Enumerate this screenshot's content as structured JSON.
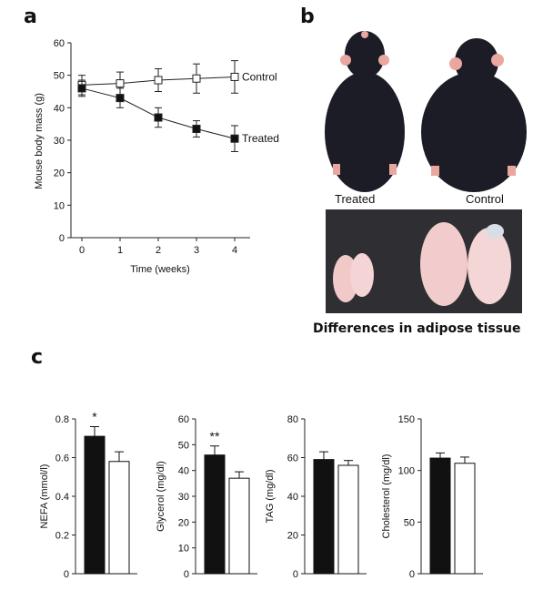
{
  "panels": {
    "a": "a",
    "b": "b",
    "c": "c"
  },
  "panel_b": {
    "label_treated": "Treated",
    "label_control": "Control",
    "caption": "Differences in adipose tissue"
  },
  "colors": {
    "treated": "#111111",
    "control": "#ffffff",
    "axis": "#222222"
  },
  "chart_data": [
    {
      "type": "line",
      "xlabel": "Time (weeks)",
      "ylabel": "Mouse body mass (g)",
      "x": [
        0,
        1,
        2,
        3,
        4
      ],
      "xticks": [
        "0",
        "1",
        "2",
        "3",
        "4"
      ],
      "ylim": [
        0,
        60
      ],
      "yticks": [
        "0",
        "10",
        "20",
        "30",
        "40",
        "50",
        "60"
      ],
      "series": [
        {
          "name": "Control",
          "marker": "open-square",
          "values": [
            47,
            47.5,
            48.5,
            49,
            49.5
          ],
          "error": [
            3,
            3.5,
            3.5,
            4.5,
            5
          ]
        },
        {
          "name": "Treated",
          "marker": "filled-square",
          "values": [
            46,
            43,
            37,
            33.5,
            30.5
          ],
          "error": [
            2.5,
            3,
            3,
            2.5,
            4
          ]
        }
      ]
    },
    {
      "type": "bar",
      "ylabel": "NEFA  (mmol/l)",
      "ylim": [
        0,
        0.8
      ],
      "yticks": [
        "0",
        "0.2",
        "0.4",
        "0.6",
        "0.8"
      ],
      "values": [
        0.71,
        0.58
      ],
      "error": [
        0.05,
        0.05
      ],
      "annotation": "*"
    },
    {
      "type": "bar",
      "ylabel": "Glycerol (mg/dl)",
      "ylim": [
        0,
        60
      ],
      "yticks": [
        "0",
        "10",
        "20",
        "30",
        "40",
        "50",
        "60"
      ],
      "values": [
        46,
        37
      ],
      "error": [
        3.5,
        2.5
      ],
      "annotation": "**"
    },
    {
      "type": "bar",
      "ylabel": "TAG (mg/dl)",
      "ylim": [
        0,
        80
      ],
      "yticks": [
        "0",
        "20",
        "40",
        "60",
        "80"
      ],
      "values": [
        59,
        56
      ],
      "error": [
        4,
        2.5
      ],
      "annotation": ""
    },
    {
      "type": "bar",
      "ylabel": "Cholesterol (mg/dl)",
      "ylim": [
        0,
        150
      ],
      "yticks": [
        "0",
        "50",
        "100",
        "150"
      ],
      "values": [
        112,
        107
      ],
      "error": [
        5,
        6
      ],
      "annotation": ""
    }
  ]
}
